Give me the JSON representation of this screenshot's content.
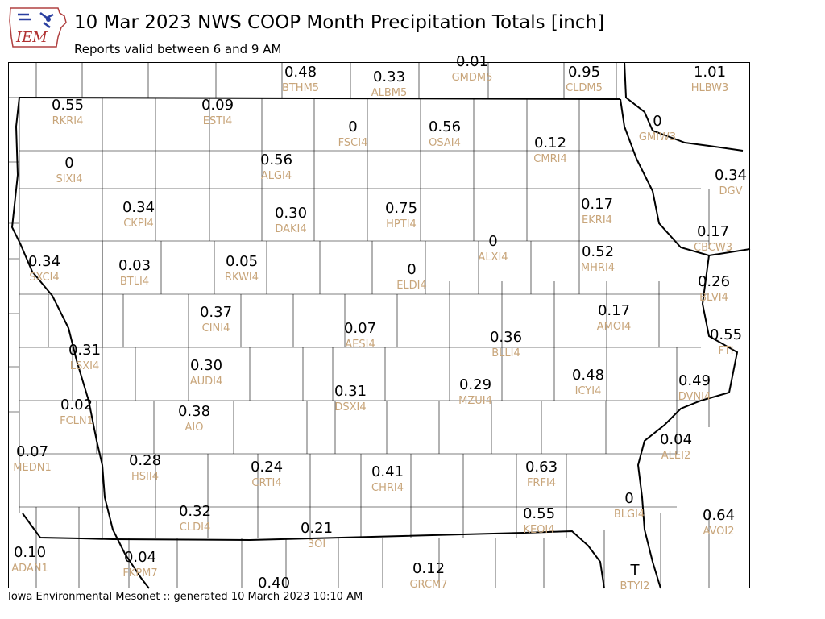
{
  "header": {
    "logo_text": "IEM",
    "title": "10 Mar 2023 NWS COOP Month Precipitation Totals [inch]",
    "subtitle": "Reports valid between 6 and 9 AM"
  },
  "footer": {
    "text": "Iowa Environmental Mesonet :: generated 10 March 2023 10:10 AM"
  },
  "colors": {
    "value": "#000000",
    "station_id": "#c8a57a",
    "state_border": "#000000",
    "county_border": "#000000",
    "logo_border": "#b04040",
    "logo_text": "#b03030",
    "logo_icon": "#2a3fa0"
  },
  "stations": [
    {
      "id": "BTHM5",
      "value": "0.48"
    },
    {
      "id": "ALBM5",
      "value": "0.33"
    },
    {
      "id": "GMDM5",
      "value": "0.01"
    },
    {
      "id": "CLDM5",
      "value": "0.95"
    },
    {
      "id": "HLBW3",
      "value": "1.01"
    },
    {
      "id": "RKRI4",
      "value": "0.55"
    },
    {
      "id": "ESTI4",
      "value": "0.09"
    },
    {
      "id": "FSCI4",
      "value": "0"
    },
    {
      "id": "OSAI4",
      "value": "0.56"
    },
    {
      "id": "GMIW3",
      "value": "0"
    },
    {
      "id": "CMRI4",
      "value": "0.12"
    },
    {
      "id": "SIXI4",
      "value": "0"
    },
    {
      "id": "ALGI4",
      "value": "0.56"
    },
    {
      "id": "DGV",
      "value": "0.34"
    },
    {
      "id": "CKPI4",
      "value": "0.34"
    },
    {
      "id": "DAKI4",
      "value": "0.30"
    },
    {
      "id": "HPTI4",
      "value": "0.75"
    },
    {
      "id": "EKRI4",
      "value": "0.17"
    },
    {
      "id": "CBCW3",
      "value": "0.17"
    },
    {
      "id": "SXCI4",
      "value": "0.34"
    },
    {
      "id": "BTLI4",
      "value": "0.03"
    },
    {
      "id": "RKWI4",
      "value": "0.05"
    },
    {
      "id": "ALXI4",
      "value": "0"
    },
    {
      "id": "MHRI4",
      "value": "0.52"
    },
    {
      "id": "ELDI4",
      "value": "0"
    },
    {
      "id": "BLVI4",
      "value": "0.26"
    },
    {
      "id": "CINI4",
      "value": "0.37"
    },
    {
      "id": "AMOI4",
      "value": "0.17"
    },
    {
      "id": "AESI4",
      "value": "0.07"
    },
    {
      "id": "BLLI4",
      "value": "0.36"
    },
    {
      "id": "FTI",
      "value": "0.55"
    },
    {
      "id": "LSXI4",
      "value": "0.31"
    },
    {
      "id": "AUDI4",
      "value": "0.30"
    },
    {
      "id": "ICYI4",
      "value": "0.48"
    },
    {
      "id": "DVNI4",
      "value": "0.49"
    },
    {
      "id": "DSXI4",
      "value": "0.31"
    },
    {
      "id": "MZUI4",
      "value": "0.29"
    },
    {
      "id": "FCLN1",
      "value": "0.02"
    },
    {
      "id": "AIO",
      "value": "0.38"
    },
    {
      "id": "ALEI2",
      "value": "0.04"
    },
    {
      "id": "MEDN1",
      "value": "0.07"
    },
    {
      "id": "HSII4",
      "value": "0.28"
    },
    {
      "id": "CRTI4",
      "value": "0.24"
    },
    {
      "id": "CHRI4",
      "value": "0.41"
    },
    {
      "id": "FRFI4",
      "value": "0.63"
    },
    {
      "id": "BLGI4",
      "value": "0"
    },
    {
      "id": "CLDI4",
      "value": "0.32"
    },
    {
      "id": "KEOI4",
      "value": "0.55"
    },
    {
      "id": "AVOI2",
      "value": "0.64"
    },
    {
      "id": "3OI",
      "value": "0.21"
    },
    {
      "id": "ADAN1",
      "value": "0.10"
    },
    {
      "id": "FKPM7",
      "value": "0.04"
    },
    {
      "id": "GRCM7",
      "value": "0.12"
    },
    {
      "id": "BTYI2",
      "value": "T"
    },
    {
      "id": "",
      "value": "0.40"
    }
  ]
}
